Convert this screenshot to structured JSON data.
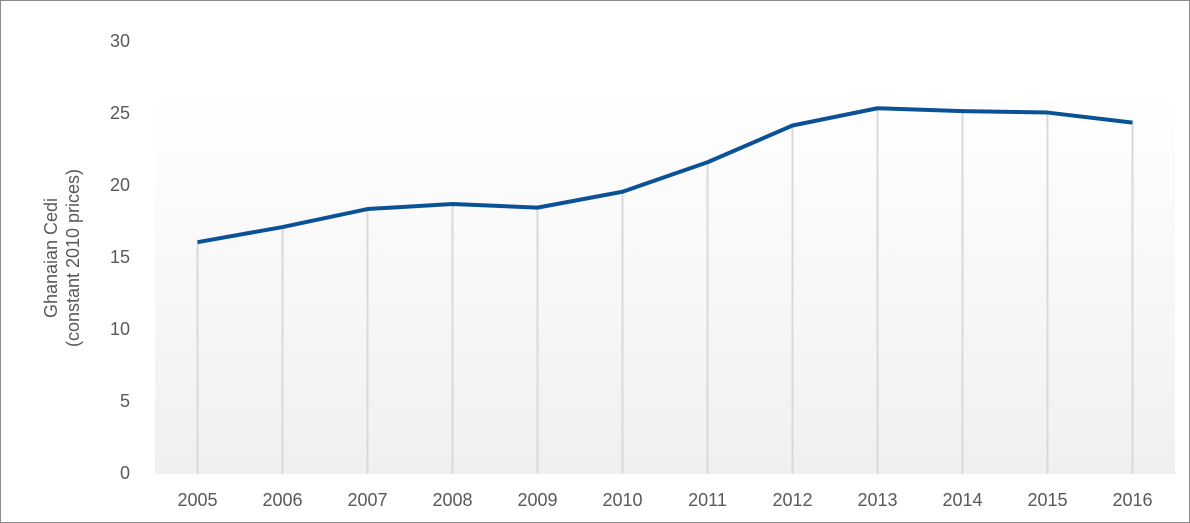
{
  "chart_data": {
    "type": "line",
    "ylabel": [
      "Ghanaian Cedi",
      "(constant 2010 prices)"
    ],
    "categories": [
      "2005",
      "2006",
      "2007",
      "2008",
      "2009",
      "2010",
      "2011",
      "2012",
      "2013",
      "2014",
      "2015",
      "2016"
    ],
    "series": [
      {
        "name": "Ghanaian Cedi (constant 2010 prices)",
        "color": "#0a5196",
        "values": [
          16.1,
          17.15,
          18.4,
          18.75,
          18.5,
          19.6,
          21.65,
          24.2,
          25.4,
          25.2,
          25.1,
          24.4
        ]
      }
    ],
    "ylim": [
      0,
      30
    ],
    "yticks": [
      0,
      5,
      10,
      15,
      20,
      25,
      30
    ],
    "grid": false,
    "drop_lines": true
  }
}
